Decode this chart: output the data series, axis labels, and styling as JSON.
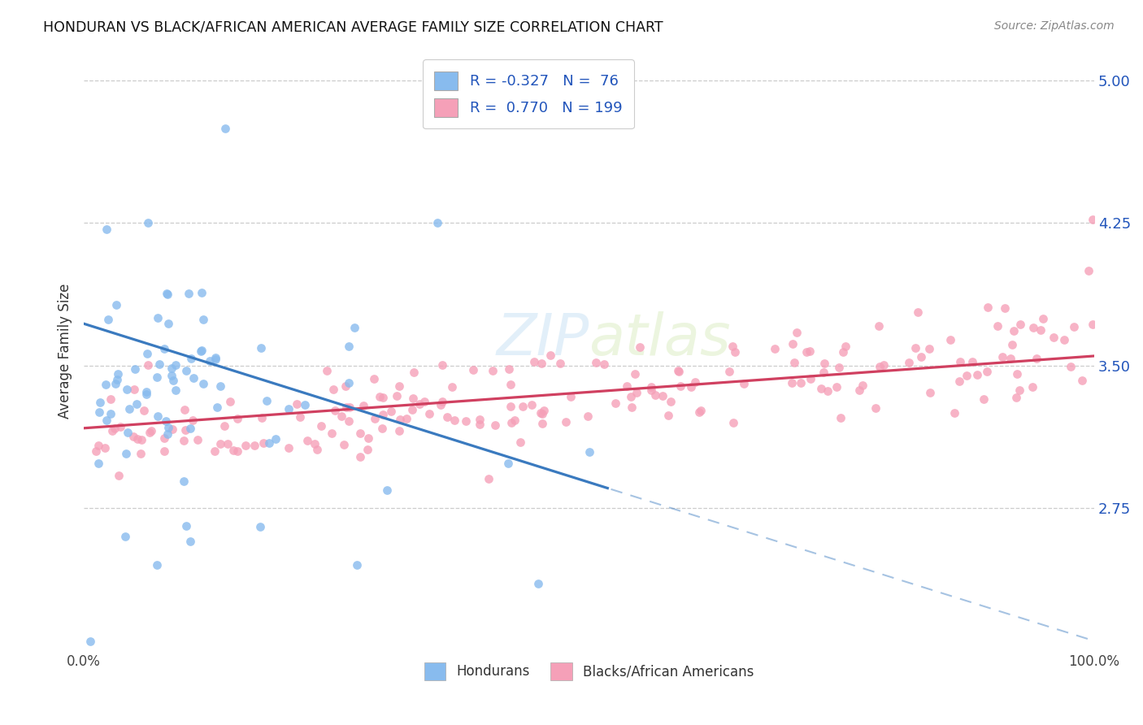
{
  "title": "HONDURAN VS BLACK/AFRICAN AMERICAN AVERAGE FAMILY SIZE CORRELATION CHART",
  "source": "Source: ZipAtlas.com",
  "ylabel": "Average Family Size",
  "ytick_values": [
    5.0,
    4.25,
    3.5,
    2.75
  ],
  "ymin": 2.0,
  "ymax": 5.15,
  "xmin": 0.0,
  "xmax": 1.0,
  "legend_line1": "R = -0.327   N =  76",
  "legend_line2": "R =  0.770   N = 199",
  "series1_color": "#88bbee",
  "series2_color": "#f5a0b8",
  "trendline1_color": "#3a7abf",
  "trendline2_color": "#d04060",
  "watermark": "ZIPatlas",
  "honduran_N": 76,
  "black_N": 199,
  "R1": -0.327,
  "R2": 0.77,
  "trendline1_y0": 3.72,
  "trendline1_y1": 2.05,
  "trendline2_y0": 3.17,
  "trendline2_y1": 3.55,
  "trendline1_solid_end": 0.52,
  "seed1": 12,
  "seed2": 77
}
